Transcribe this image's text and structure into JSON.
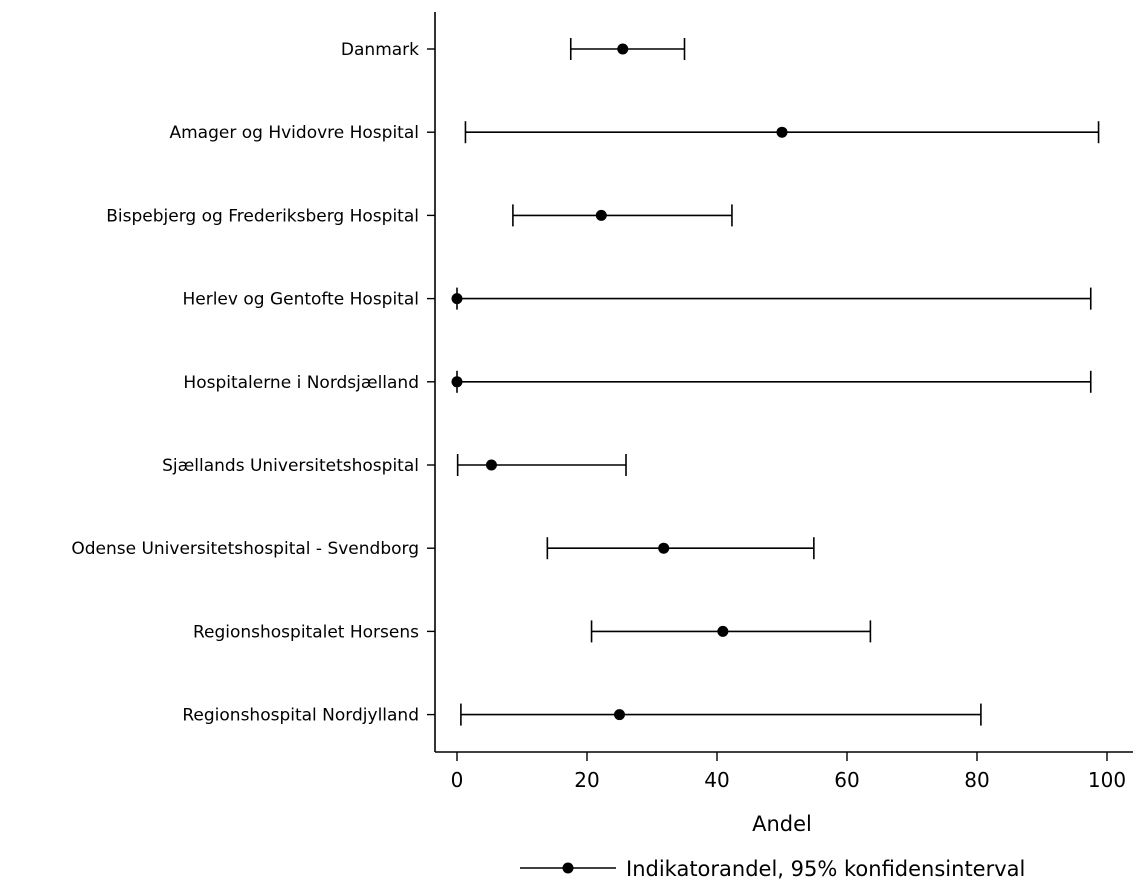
{
  "chart_data": {
    "type": "scatter",
    "subtype": "dot-with-error-bars",
    "categories": [
      "Danmark",
      "Amager og Hvidovre Hospital",
      "Bispebjerg og Frederiksberg Hospital",
      "Herlev og Gentofte Hospital",
      "Hospitalerne i Nordsjælland",
      "Sjællands Universitetshospital",
      "Odense Universitetshospital - Svendborg",
      "Regionshospitalet Horsens",
      "Regionshospital Nordjylland"
    ],
    "values": [
      25.5,
      50.0,
      22.2,
      0.0,
      0.0,
      5.3,
      31.8,
      40.9,
      25.0
    ],
    "ci_low": [
      17.5,
      1.3,
      8.6,
      0.0,
      0.0,
      0.1,
      13.9,
      20.7,
      0.6
    ],
    "ci_high": [
      35.0,
      98.7,
      42.3,
      97.5,
      97.5,
      26.0,
      54.9,
      63.6,
      80.6
    ],
    "xlabel": "Andel",
    "xlim": [
      0,
      100
    ],
    "xticks": [
      0,
      20,
      40,
      60,
      80,
      100
    ],
    "legend": {
      "label": "Indikatorandel, 95% konfidensinterval",
      "position": "bottom"
    },
    "grid": false
  }
}
